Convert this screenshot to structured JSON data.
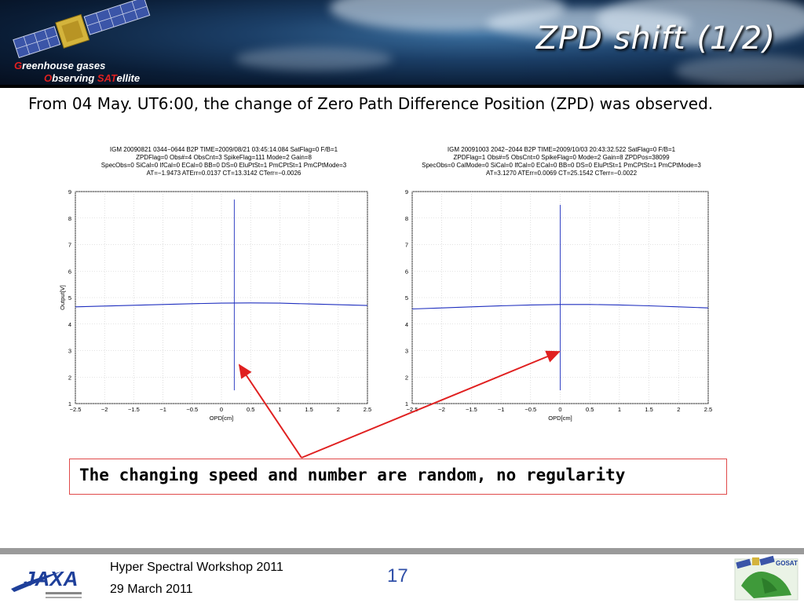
{
  "header": {
    "title": "ZPD shift (1/2)",
    "logo_line1_first": "G",
    "logo_line1_rest": "reenhouse gases",
    "logo_line2_first": "O",
    "logo_line2_mid": "bserving ",
    "logo_line2_sat": "SAT",
    "logo_line2_rest": "ellite"
  },
  "intro_text": "From 04 May. UT6:00, the change of Zero Path Difference Position (ZPD) was observed.",
  "plots": [
    {
      "header": [
        "IGM 20090821 0344−0644 B2P TIME=2009/08/21 03:45:14.084 SatFlag=0 F/B=1",
        "ZPDFlag=0 Obs#=4 ObsCnt=3 SpikeFlag=111 Mode=2 Gain=8",
        "SpecObs=0 SiCal=0 IfCal=0 ECal=0 BB=0 DS=0 EluPtSt=1 PmCPtSt=1 PmCPtMode=3",
        "AT=−1.9473 ATErr=0.0137 CT=13.3142 CTerr=−0.0026"
      ],
      "ylabel": "Output[V]",
      "xlabel": "OPD[cm]"
    },
    {
      "header": [
        "IGM 20091003 2042−2044 B2P TIME=2009/10/03 20:43:32.522 SatFlag=0 F/B=1",
        "ZPDFlag=1 Obs#=5 ObsCnt=0 SpikeFlag=0 Mode=2 Gain=8 ZPDPos=38099",
        "SpecObs=0 CalMode=0 SiCal=0 IfCal=0 ECal=0 BB=0 DS=0 EluPtSt=1 PmCPtSt=1 PmCPtMode=3",
        "AT=3.1270 ATErr=0.0069 CT=25.1542 CTerr=−0.0022"
      ],
      "ylabel": "",
      "xlabel": "OPD[cm]"
    }
  ],
  "chart_data": [
    {
      "type": "line",
      "xlim": [
        -2.5,
        2.5
      ],
      "ylim": [
        1,
        9
      ],
      "xticks": [
        "−2.5",
        "−2",
        "−1.5",
        "−1",
        "−0.5",
        "0",
        "0.5",
        "1",
        "1.5",
        "2",
        "2.5"
      ],
      "yticks": [
        "1",
        "2",
        "3",
        "4",
        "5",
        "6",
        "7",
        "8",
        "9"
      ],
      "grid": true,
      "series": [
        {
          "x": [
            -2.5,
            -2.0,
            -1.5,
            -1.0,
            -0.5,
            0.0,
            0.5,
            1.0,
            1.5,
            2.0,
            2.5
          ],
          "y": [
            4.65,
            4.68,
            4.71,
            4.74,
            4.77,
            4.79,
            4.8,
            4.79,
            4.76,
            4.73,
            4.7
          ]
        }
      ],
      "spike": {
        "x": 0.22,
        "ymin": 1.5,
        "ymax": 8.7
      },
      "color": "#1f2fbf"
    },
    {
      "type": "line",
      "xlim": [
        -2.5,
        2.5
      ],
      "ylim": [
        1,
        9
      ],
      "xticks": [
        "−2.5",
        "−2",
        "−1.5",
        "−1",
        "−0.5",
        "0",
        "0.5",
        "1",
        "1.5",
        "2",
        "2.5"
      ],
      "yticks": [
        "1",
        "2",
        "3",
        "4",
        "5",
        "6",
        "7",
        "8",
        "9"
      ],
      "grid": true,
      "series": [
        {
          "x": [
            -2.5,
            -2.0,
            -1.5,
            -1.0,
            -0.5,
            0.0,
            0.5,
            1.0,
            1.5,
            2.0,
            2.5
          ],
          "y": [
            4.57,
            4.61,
            4.65,
            4.69,
            4.72,
            4.74,
            4.74,
            4.72,
            4.69,
            4.65,
            4.61
          ]
        }
      ],
      "spike": {
        "x": 0.0,
        "ymin": 1.5,
        "ymax": 8.5
      },
      "color": "#1f2fbf"
    }
  ],
  "callout_text": "The changing speed and number are random, no regularity",
  "arrow_color": "#e02020",
  "footer": {
    "line1": "Hyper Spectral Workshop 2011",
    "line2": "29 March 2011",
    "page_number": "17",
    "jaxa_logo": "JAXA",
    "gosat_logo": "GOSAT"
  }
}
